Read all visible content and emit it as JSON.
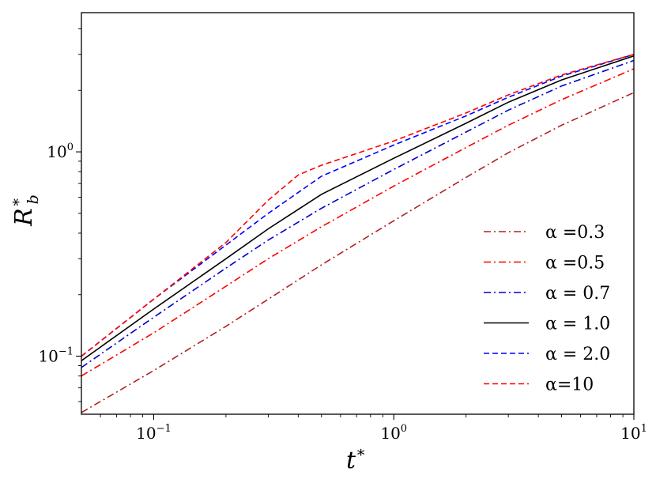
{
  "chart_data": {
    "type": "line",
    "xlabel": "t*",
    "ylabel": "R_b*",
    "xscale": "log",
    "yscale": "log",
    "xlim": [
      0.05,
      10
    ],
    "ylim": [
      0.052,
      4.8
    ],
    "grid": false,
    "legend_position": "lower-right",
    "x_ticks": [
      {
        "value": 0.1,
        "base": "10",
        "exp": "−1"
      },
      {
        "value": 1,
        "base": "10",
        "exp": "0"
      },
      {
        "value": 10,
        "base": "10",
        "exp": "1"
      }
    ],
    "y_ticks": [
      {
        "value": 0.1,
        "base": "10",
        "exp": "−1"
      },
      {
        "value": 1,
        "base": "10",
        "exp": "0"
      }
    ],
    "series": [
      {
        "name": "α =0.3",
        "color": "#b22222",
        "dash": "dashdot",
        "x": [
          0.05,
          0.1,
          0.2,
          0.3,
          0.5,
          1,
          2,
          3,
          5,
          10
        ],
        "y": [
          0.053,
          0.085,
          0.14,
          0.19,
          0.28,
          0.46,
          0.75,
          0.99,
          1.35,
          1.95
        ]
      },
      {
        "name": "α =0.5",
        "color": "#ff0000",
        "dash": "dashdot",
        "x": [
          0.05,
          0.1,
          0.2,
          0.3,
          0.5,
          1,
          2,
          3,
          5,
          10
        ],
        "y": [
          0.08,
          0.13,
          0.22,
          0.3,
          0.43,
          0.68,
          1.05,
          1.35,
          1.8,
          2.55
        ]
      },
      {
        "name": "α = 0.7",
        "color": "#0000cd",
        "dash": "dashdot",
        "x": [
          0.05,
          0.1,
          0.2,
          0.3,
          0.5,
          1,
          2,
          3,
          5,
          10
        ],
        "y": [
          0.088,
          0.155,
          0.27,
          0.37,
          0.53,
          0.82,
          1.25,
          1.6,
          2.1,
          2.8
        ]
      },
      {
        "name": "α = 1.0",
        "color": "#000000",
        "dash": "solid",
        "x": [
          0.05,
          0.1,
          0.2,
          0.3,
          0.5,
          1,
          2,
          3,
          5,
          10
        ],
        "y": [
          0.095,
          0.17,
          0.3,
          0.42,
          0.62,
          0.93,
          1.38,
          1.75,
          2.25,
          2.95
        ]
      },
      {
        "name": "α = 2.0",
        "color": "#0000ff",
        "dash": "dashed",
        "x": [
          0.05,
          0.1,
          0.2,
          0.3,
          0.5,
          1,
          2,
          3,
          5,
          10
        ],
        "y": [
          0.1,
          0.19,
          0.35,
          0.5,
          0.76,
          1.08,
          1.5,
          1.85,
          2.35,
          3.0
        ]
      },
      {
        "name": "α=10",
        "color": "#ff0000",
        "dash": "dashed",
        "x": [
          0.05,
          0.1,
          0.2,
          0.3,
          0.4,
          0.5,
          1,
          2,
          3,
          5,
          10
        ],
        "y": [
          0.1,
          0.19,
          0.36,
          0.58,
          0.77,
          0.86,
          1.13,
          1.55,
          1.9,
          2.38,
          3.0
        ]
      }
    ]
  }
}
